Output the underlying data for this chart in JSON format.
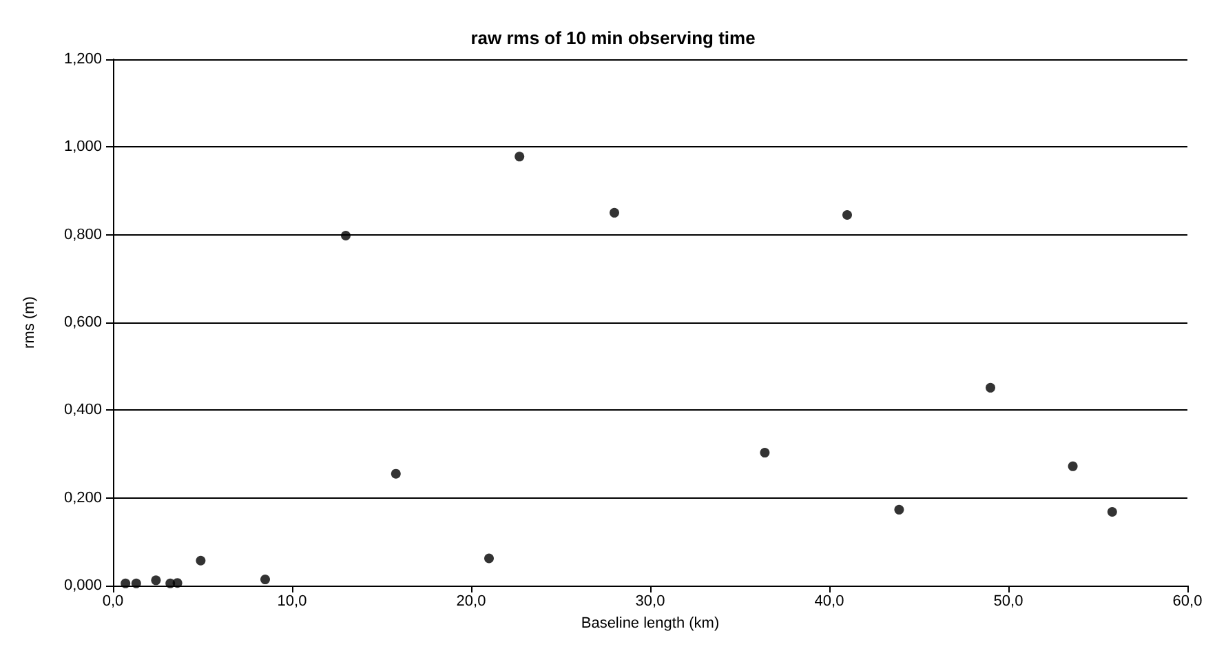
{
  "chart_data": {
    "type": "scatter",
    "title": "raw rms of 10 min observing time",
    "xlabel": "Baseline length (km)",
    "ylabel": "rms (m)",
    "x": [
      0.7,
      1.3,
      2.4,
      3.2,
      3.6,
      4.9,
      8.5,
      13.0,
      15.8,
      21.0,
      22.7,
      28.0,
      36.4,
      41.0,
      43.9,
      49.0,
      53.6,
      55.8
    ],
    "values": [
      0.005,
      0.005,
      0.012,
      0.005,
      0.006,
      0.057,
      0.014,
      0.798,
      0.255,
      0.062,
      0.978,
      0.85,
      0.303,
      0.845,
      0.173,
      0.451,
      0.272,
      0.168
    ],
    "color": "#000000",
    "marker": "circle",
    "grid": "y",
    "xlim": [
      0,
      60
    ],
    "xticks": [
      {
        "value": 0,
        "label": "0,0"
      },
      {
        "value": 10,
        "label": "10,0"
      },
      {
        "value": 20,
        "label": "20,0"
      },
      {
        "value": 30,
        "label": "30,0"
      },
      {
        "value": 40,
        "label": "40,0"
      },
      {
        "value": 50,
        "label": "50,0"
      },
      {
        "value": 60,
        "label": "60,0"
      }
    ],
    "ylim": [
      0,
      1.2
    ],
    "yticks": [
      {
        "value": 0,
        "label": "0,000"
      },
      {
        "value": 0.2,
        "label": "0,200"
      },
      {
        "value": 0.4,
        "label": "0,400"
      },
      {
        "value": 0.6,
        "label": "0,600"
      },
      {
        "value": 0.8,
        "label": "0,800"
      },
      {
        "value": 1,
        "label": "1,000"
      },
      {
        "value": 1.2,
        "label": "1,200"
      }
    ]
  }
}
